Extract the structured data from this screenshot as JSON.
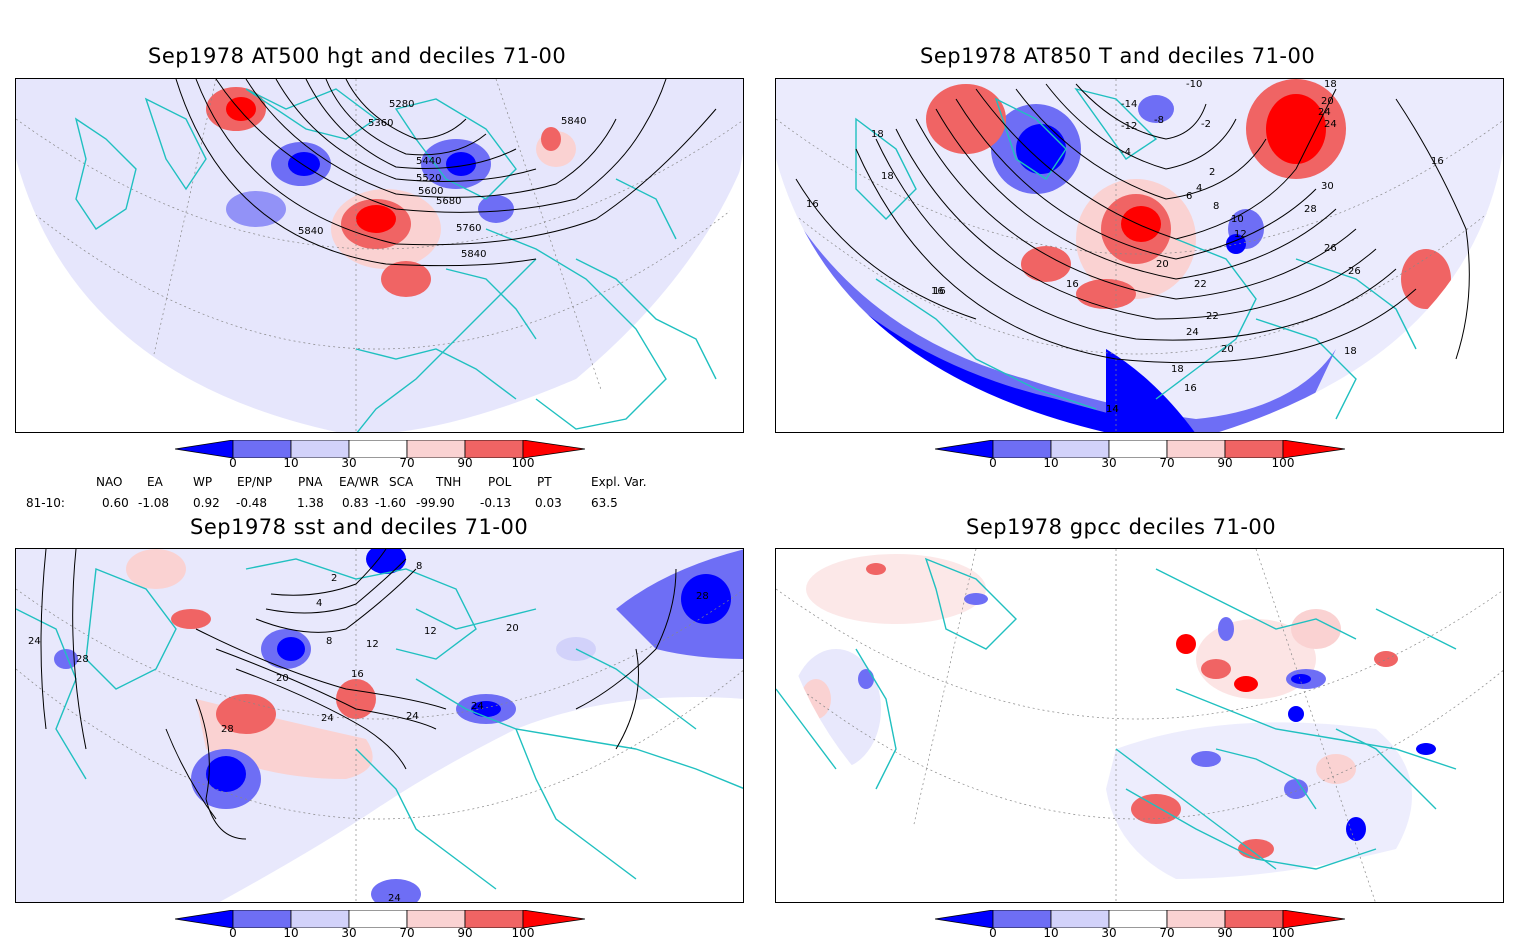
{
  "panels": [
    {
      "id": "p1",
      "title": "Sep1978 AT500 hgt and deciles 71-00",
      "contour_labels": [
        "5280",
        "5360",
        "5440",
        "5520",
        "5600",
        "5680",
        "5760",
        "5840",
        "5840",
        "5840"
      ]
    },
    {
      "id": "p2",
      "title": "Sep1978 AT850 T and deciles 71-00",
      "contour_labels": [
        "18",
        "18",
        "16",
        "16",
        "16",
        "14",
        "12",
        "10",
        "8",
        "6",
        "4",
        "2",
        "-2",
        "-4",
        "-8",
        "-10",
        "-12",
        "-14",
        "20",
        "22",
        "24",
        "26",
        "26",
        "28",
        "30",
        "24",
        "20",
        "18",
        "16",
        "18",
        "20",
        "22",
        "24",
        "16",
        "14",
        "16",
        "18"
      ]
    },
    {
      "id": "p3",
      "title": "Sep1978 sst and deciles 71-00",
      "contour_labels": [
        "24",
        "28",
        "28",
        "24",
        "20",
        "16",
        "12",
        "8",
        "4",
        "2",
        "24",
        "24",
        "20",
        "12",
        "8",
        "28",
        "24"
      ]
    },
    {
      "id": "p4",
      "title": "Sep1978 gpcc deciles 71-00",
      "contour_labels": []
    }
  ],
  "colorbar": {
    "ticks": [
      "0",
      "10",
      "30",
      "70",
      "90",
      "100"
    ],
    "colors": [
      "#0000ff",
      "#6e6ef5",
      "#d2d2fa",
      "#ffffff",
      "#fad2d2",
      "#f06464",
      "#ff0000"
    ]
  },
  "indices": {
    "row_label": "81-10:",
    "names": [
      "NAO",
      "EA",
      "WP",
      "EP/NP",
      "PNA",
      "EA/WR",
      "SCA",
      "TNH",
      "POL",
      "PT",
      "Expl. Var."
    ],
    "values": [
      "0.60",
      "-1.08",
      "0.92",
      "-0.48",
      "1.38",
      "0.83",
      "-1.60",
      "-99.90",
      "-0.13",
      "0.03",
      "63.5"
    ]
  },
  "colors": {
    "coastline": "#20c0c0",
    "contour": "#000000",
    "grid": "#888888"
  }
}
